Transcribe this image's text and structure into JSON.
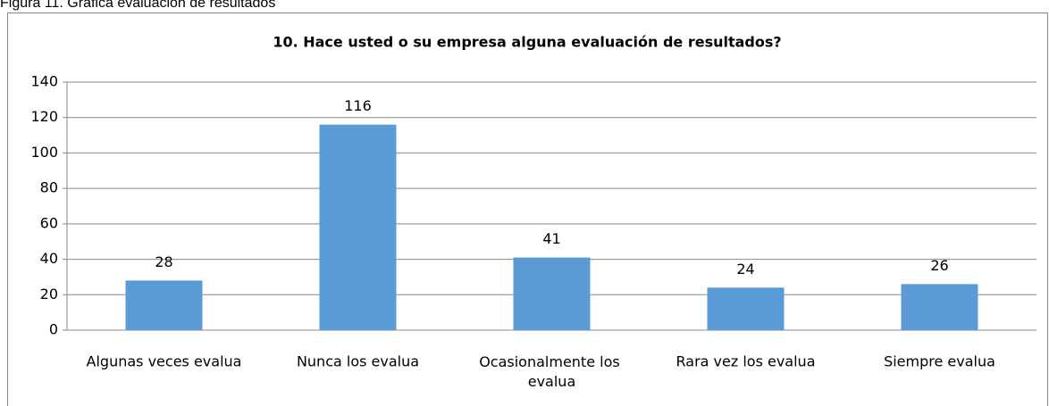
{
  "caption": "Figura 11. Gráfica evaluación de resultados",
  "chart_data": {
    "type": "bar",
    "title": "10. Hace usted o su empresa alguna evaluación de resultados?",
    "categories": [
      "Algunas veces evalua",
      "Nunca los evalua",
      "Ocasionalmente los evalua",
      "Rara vez los evalua",
      "Siempre evalua"
    ],
    "values": [
      28,
      116,
      41,
      24,
      26
    ],
    "color": "#5b9bd5",
    "ylim": [
      0,
      140
    ],
    "yticks": [
      0,
      20,
      40,
      60,
      80,
      100,
      120,
      140
    ],
    "grid": true
  }
}
